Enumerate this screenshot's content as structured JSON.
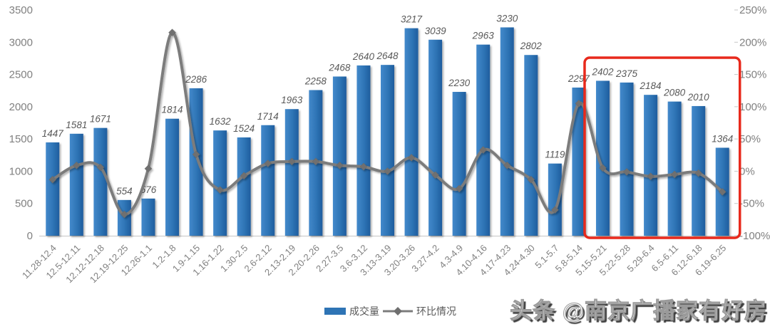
{
  "chart_data": {
    "type": "combo-bar-line",
    "title": "",
    "categories": [
      "11.28-12.4",
      "12.5-12.11",
      "12.12-12.18",
      "12.19-12.25",
      "12.26-1.1",
      "1.2-1.8",
      "1.9-1.15",
      "1.16-1.22",
      "1.30-2.5",
      "2.6-2.12",
      "2.13-2.19",
      "2.20-2.26",
      "2.27-3.5",
      "3.6-3.12",
      "3.13-3.19",
      "3.20-3.26",
      "3.27-4.2",
      "4.3-4.9",
      "4.10-4.16",
      "4.17-4.23",
      "4.24-4.30",
      "5.1-5.7",
      "5.8-5.14",
      "5.15-5.21",
      "5.22-5.28",
      "5.29-6.4",
      "6.5-6.11",
      "6.12-6.18",
      "6.19-6.25"
    ],
    "series": [
      {
        "name": "成交量",
        "type": "bar",
        "axis": "left",
        "values": [
          1447,
          1581,
          1671,
          554,
          576,
          1814,
          2286,
          1632,
          1524,
          1714,
          1963,
          2258,
          2468,
          2640,
          2648,
          3217,
          3039,
          2230,
          2963,
          3230,
          2802,
          1119,
          2297,
          2402,
          2375,
          2184,
          2080,
          2010,
          1364
        ]
      },
      {
        "name": "环比情况",
        "type": "line",
        "axis": "right",
        "unit": "%",
        "values": [
          -13,
          9,
          6,
          -67,
          4,
          215,
          26,
          -29,
          -7,
          12,
          15,
          15,
          9,
          7,
          0,
          21,
          -6,
          -27,
          33,
          9,
          -13,
          -60,
          105,
          5,
          -1,
          -8,
          -5,
          -3,
          -32
        ]
      }
    ],
    "left_axis": {
      "min": 0,
      "max": 3500,
      "step": 500,
      "tick_labels": [
        "0",
        "500",
        "1000",
        "1500",
        "2000",
        "2500",
        "3000",
        "3500"
      ]
    },
    "right_axis": {
      "min": -100,
      "max": 250,
      "step": 50,
      "tick_labels": [
        "-100%",
        "-50%",
        "0%",
        "50%",
        "100%",
        "150%",
        "200%",
        "250%"
      ]
    },
    "highlight_box": {
      "from_index": 23,
      "to_index": 28,
      "color": "#E8291C"
    },
    "grid": "off",
    "legend_position": "bottom",
    "colors": {
      "bar": "#2E74B5",
      "bar_gradient_light": "#4389CB",
      "bar_gradient_dark": "#1F5D9E",
      "line": "#7C7C7C",
      "marker": "#6F6F6F",
      "value_label": "#595959",
      "axis_label": "#808080",
      "axis_line": "#C6C6C6",
      "highlight": "#E8291C"
    }
  },
  "legend": {
    "items": [
      {
        "label": "成交量",
        "swatch": "bar-swatch"
      },
      {
        "label": "环比情况",
        "swatch": "line-diamond-swatch"
      }
    ]
  },
  "watermark": {
    "text": "头条 @南京广播家有好房"
  }
}
